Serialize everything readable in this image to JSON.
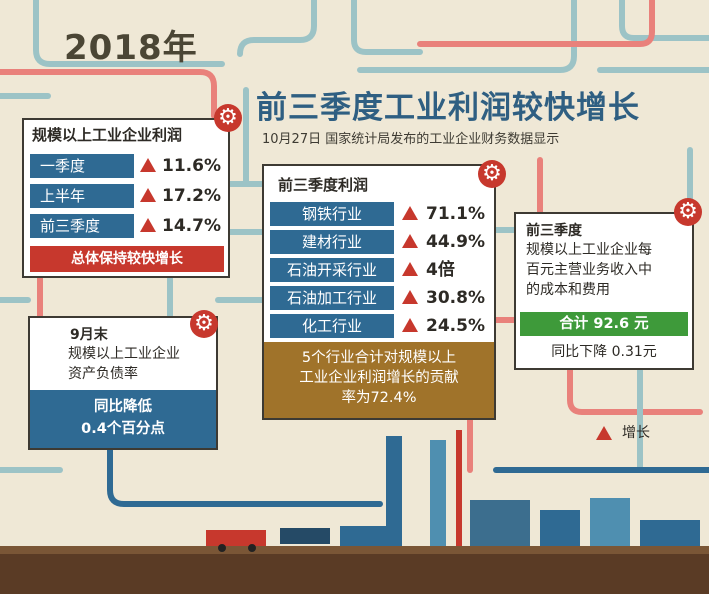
{
  "year": "2018年",
  "title": "前三季度工业利润较快增长",
  "subtitle": "10月27日  国家统计局发布的工业企业财务数据显示",
  "colors": {
    "blue": "#2f6a93",
    "red": "#c7382d",
    "green": "#3e9a3a",
    "brown": "#a0732a"
  },
  "card_profit": {
    "title": "规模以上工业企业利润",
    "rows": [
      {
        "label": "一季度",
        "value": "11.6%"
      },
      {
        "label": "上半年",
        "value": "17.2%"
      },
      {
        "label": "前三季度",
        "value": "14.7%"
      }
    ],
    "footer": "总体保持较快增长"
  },
  "card_industries": {
    "title": "前三季度利润",
    "rows": [
      {
        "label": "钢铁行业",
        "value": "71.1%"
      },
      {
        "label": "建材行业",
        "value": "44.9%"
      },
      {
        "label": "石油开采行业",
        "value": "4倍"
      },
      {
        "label": "石油加工行业",
        "value": "30.8%"
      },
      {
        "label": "化工行业",
        "value": "24.5%"
      }
    ],
    "footer_line1": "5个行业合计对规模以上",
    "footer_line2": "工业企业利润增长的贡献",
    "footer_line3": "率为72.4%"
  },
  "card_debt": {
    "title": "9月末",
    "body_line1": "规模以上工业企业",
    "body_line2": "资产负债率",
    "footer_line1": "同比降低",
    "footer_line2": "0.4个百分点"
  },
  "card_cost": {
    "title": "前三季度",
    "body_line1": "规模以上工业企业每",
    "body_line2": "百元主营业务收入中",
    "body_line3": "的成本和费用",
    "total": "合计 92.6 元",
    "change": "同比下降 0.31元"
  },
  "legend": {
    "label": "增长"
  }
}
